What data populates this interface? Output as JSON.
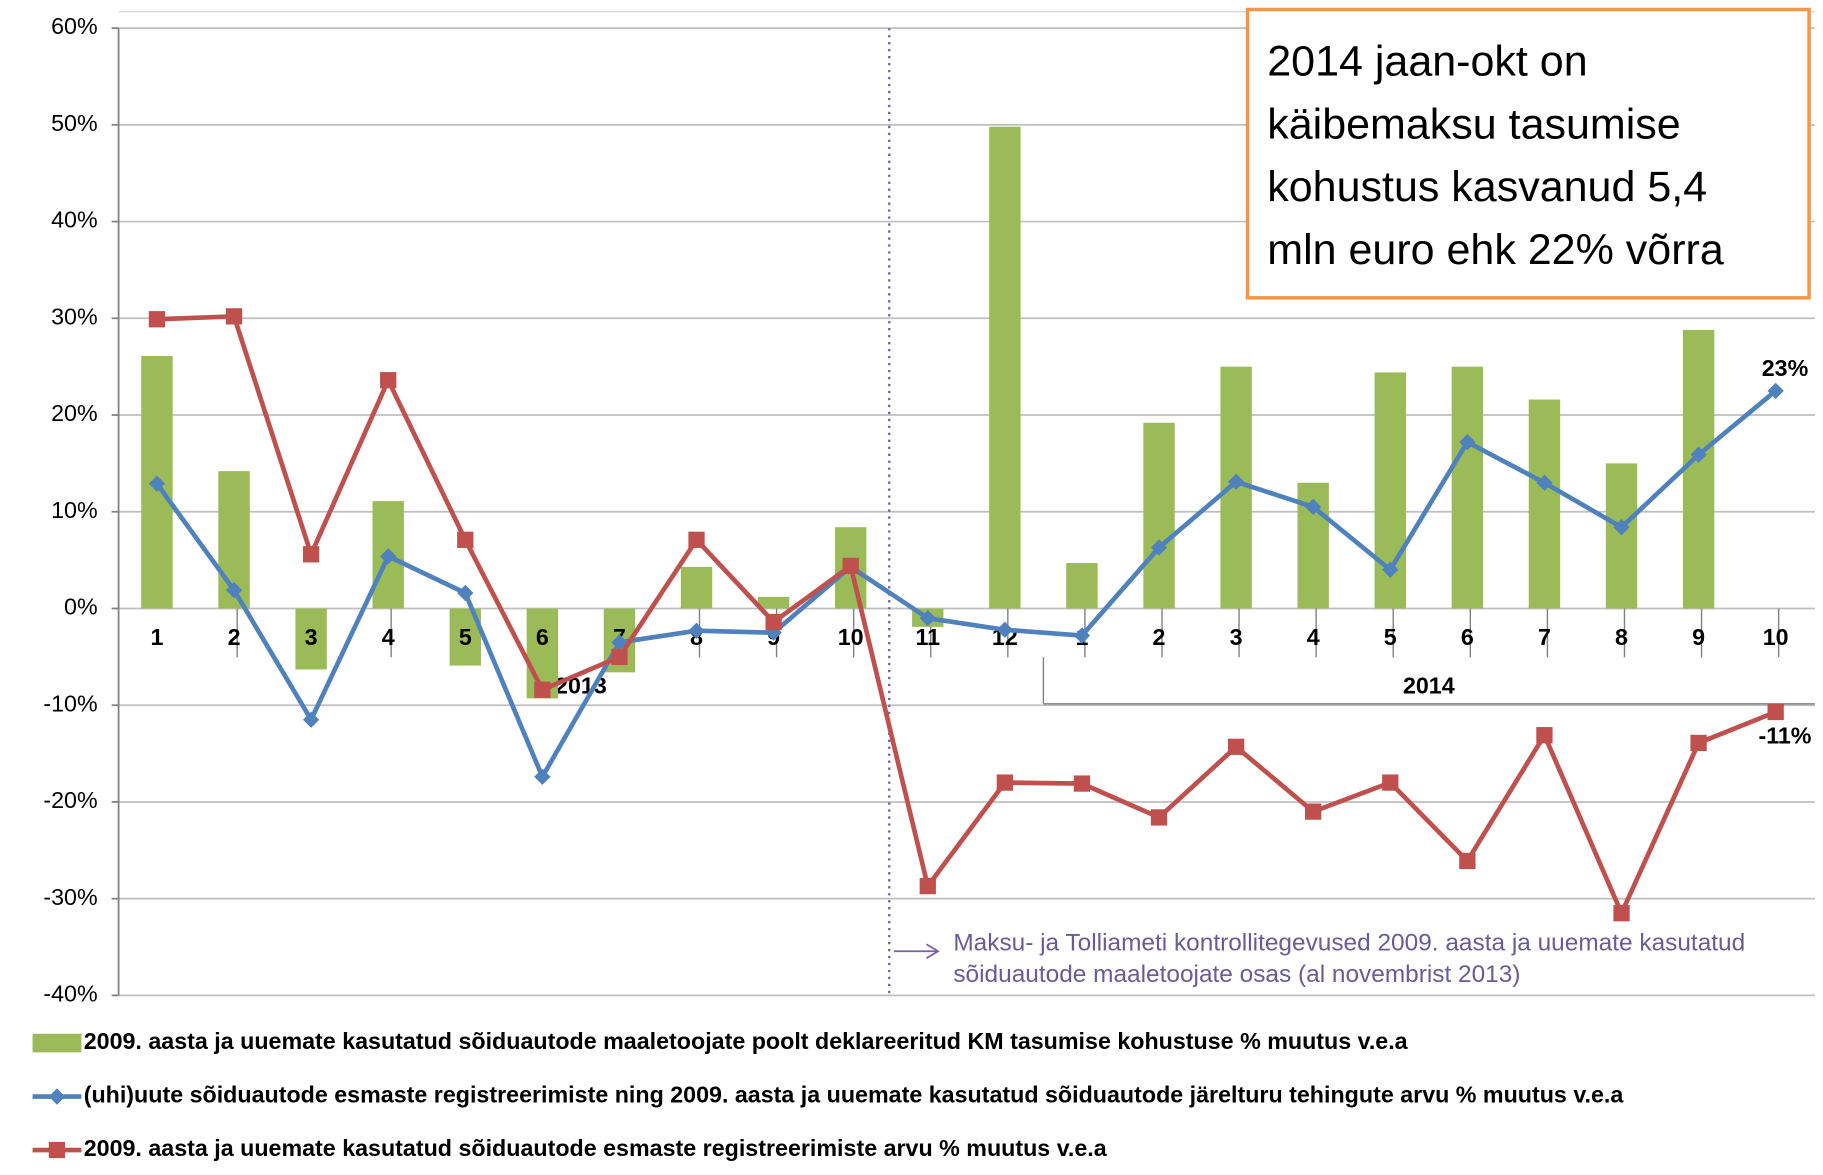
{
  "chart_data": {
    "type": "bar+line",
    "categories": [
      "1",
      "2",
      "3",
      "4",
      "5",
      "6",
      "7",
      "8",
      "9",
      "10",
      "11",
      "12",
      "1",
      "2",
      "3",
      "4",
      "5",
      "6",
      "7",
      "8",
      "9",
      "10"
    ],
    "groups": [
      "2013",
      "2014"
    ],
    "ylim": [
      -40,
      60
    ],
    "yticks": [
      {
        "value": -40,
        "label": "-40%"
      },
      {
        "value": -30,
        "label": "-30%"
      },
      {
        "value": -20,
        "label": "-20%"
      },
      {
        "value": -10,
        "label": "-10%"
      },
      {
        "value": 0,
        "label": "0%"
      },
      {
        "value": 10,
        "label": "10%"
      },
      {
        "value": 20,
        "label": "20%"
      },
      {
        "value": 30,
        "label": "30%"
      },
      {
        "value": 40,
        "label": "40%"
      },
      {
        "value": 50,
        "label": "50%"
      },
      {
        "value": 60,
        "label": "60%"
      }
    ],
    "grid": true,
    "series": [
      {
        "name": "2009. aasta ja uuemate kasutatud sõiduautode maaletoojate poolt deklareeritud KM tasumise kohustuse % muutus v.e.a",
        "type": "bar",
        "color": "#9bbb59",
        "values": [
          26.1,
          14.2,
          -6.3,
          11.1,
          -5.9,
          -9.3,
          -6.6,
          4.3,
          1.2,
          8.4,
          -1.9,
          49.8,
          4.7,
          19.2,
          25.0,
          13.0,
          24.4,
          25.0,
          21.6,
          15.0,
          28.8,
          null
        ]
      },
      {
        "name": "(uhi)uute sõiduautode esmaste registreerimiste ning 2009. aasta ja uuemate kasutatud sõiduautode järelturu tehingute arvu % muutus v.e.a",
        "type": "line",
        "marker": "diamond",
        "color": "#4f81bd",
        "values": [
          12.9,
          1.9,
          -11.5,
          5.4,
          1.6,
          -17.4,
          -3.5,
          -2.3,
          -2.5,
          4.3,
          -1.0,
          -2.2,
          -2.8,
          6.3,
          13.1,
          10.5,
          4.0,
          17.2,
          13.0,
          8.4,
          15.9,
          22.5
        ],
        "value_labels": [
          null,
          null,
          null,
          null,
          null,
          null,
          null,
          null,
          null,
          null,
          null,
          null,
          null,
          null,
          null,
          null,
          null,
          null,
          null,
          null,
          null,
          "23%"
        ]
      },
      {
        "name": "2009. aasta ja uuemate kasutatud sõiduautode esmaste registreerimiste arvu % muutus v.e.a",
        "type": "line",
        "marker": "square",
        "color": "#c0504d",
        "values": [
          29.9,
          30.2,
          5.6,
          23.6,
          7.1,
          -8.4,
          -5.0,
          7.1,
          -1.4,
          4.4,
          -28.7,
          -18.0,
          -18.1,
          -21.6,
          -14.3,
          -21.0,
          -18.0,
          -26.1,
          -13.1,
          -31.5,
          -13.9,
          -10.7
        ],
        "value_labels": [
          null,
          null,
          null,
          null,
          null,
          null,
          null,
          null,
          null,
          null,
          null,
          null,
          null,
          null,
          null,
          null,
          null,
          null,
          null,
          null,
          null,
          "-11%"
        ]
      }
    ],
    "textbox": [
      "2014 jaan-okt on",
      "käibemaksu tasumise",
      "kohustus kasvanud  5,4",
      "mln euro ehk 22% võrra"
    ],
    "annotation": [
      "Maksu- ja Tolliameti kontrollitegevused 2009. aasta ja uuemate kasutatud",
      "sõiduautode maaletoojate osas  (al novembrist 2013)"
    ]
  }
}
